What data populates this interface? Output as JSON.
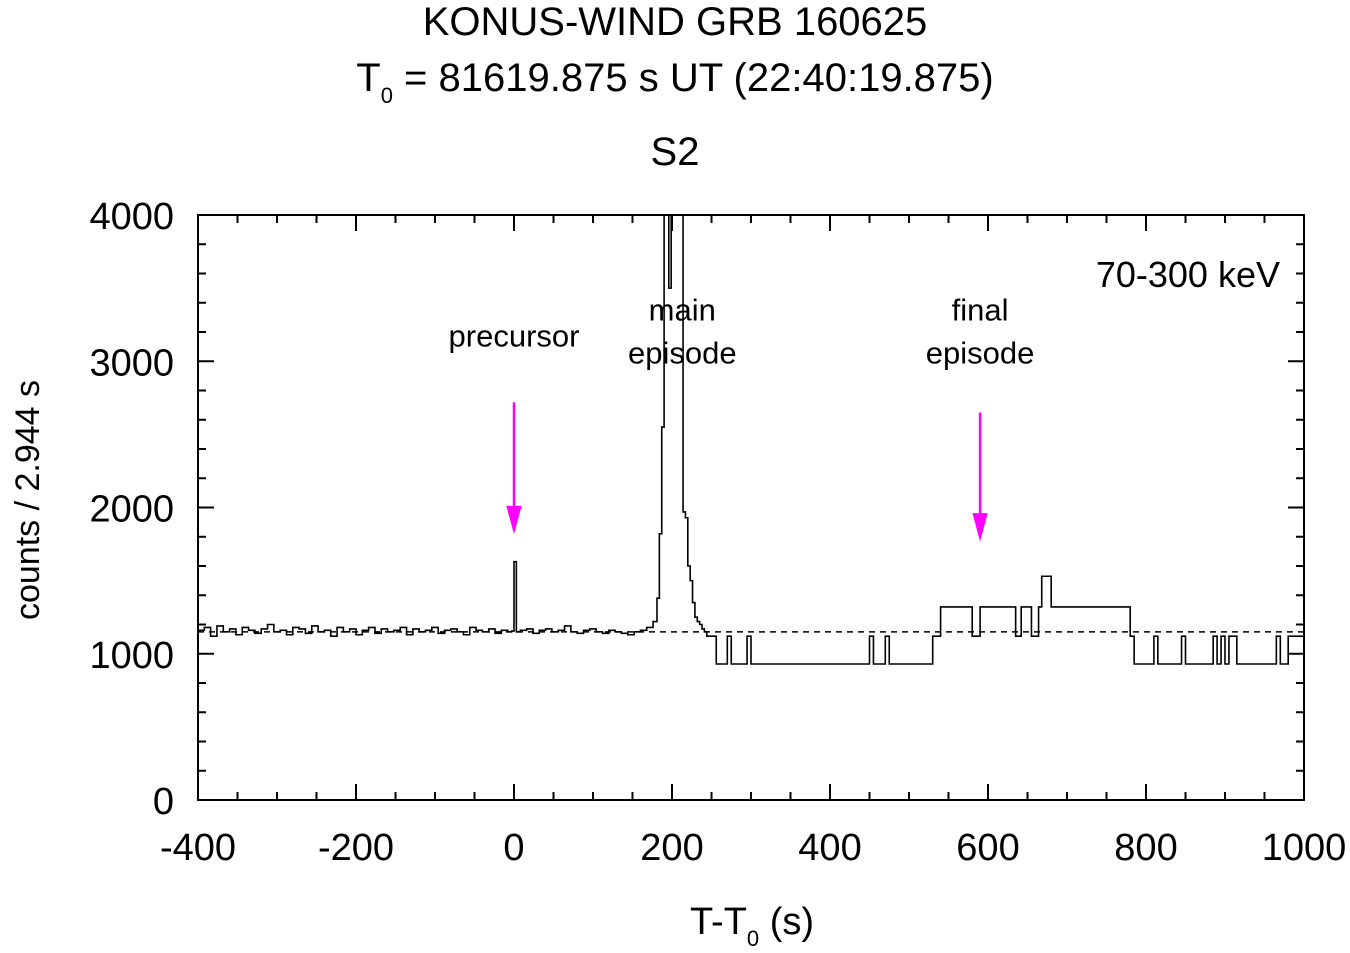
{
  "chart_data": {
    "type": "line",
    "title": "KONUS-WIND GRB 160625",
    "title_line2": {
      "prefix": "T",
      "sub": "0",
      "suffix": " = 81619.875 s UT (22:40:19.875)"
    },
    "panel_label": "S2",
    "energy_band": "70-300 keV",
    "xlabel": {
      "prefix": "T-T",
      "sub": "0",
      "suffix": " (s)"
    },
    "ylabel": "counts / 2.944 s",
    "xlim": [
      -400,
      1000
    ],
    "ylim": [
      0,
      4000
    ],
    "xticks": [
      -400,
      -200,
      0,
      200,
      400,
      600,
      800,
      1000
    ],
    "yticks": [
      0,
      1000,
      2000,
      3000,
      4000
    ],
    "grid": false,
    "background_level": 1150,
    "annotations": [
      {
        "lines": [
          "precursor"
        ],
        "x": 0,
        "y": 3100,
        "arrow_from": 2720,
        "arrow_to": 1830,
        "arrow_x": 0,
        "color": "#ff00ff"
      },
      {
        "lines": [
          "main",
          "episode"
        ],
        "x": 213,
        "y": 3280
      },
      {
        "lines": [
          "final",
          "episode"
        ],
        "x": 590,
        "y": 3280,
        "arrow_from": 2650,
        "arrow_to": 1780,
        "arrow_x": 590,
        "color": "#ff00ff"
      }
    ],
    "series": [
      {
        "style": "step",
        "x": [
          -400,
          -392,
          -384,
          -376,
          -368,
          -360,
          -352,
          -344,
          -336,
          -328,
          -320,
          -312,
          -304,
          -296,
          -288,
          -280,
          -272,
          -264,
          -256,
          -248,
          -240,
          -232,
          -224,
          -216,
          -208,
          -200,
          -192,
          -184,
          -176,
          -168,
          -160,
          -152,
          -144,
          -136,
          -128,
          -120,
          -112,
          -104,
          -96,
          -88,
          -80,
          -72,
          -64,
          -56,
          -48,
          -40,
          -32,
          -24,
          -16,
          -8,
          -3,
          0,
          3,
          8,
          16,
          24,
          32,
          40,
          48,
          56,
          64,
          72,
          80,
          88,
          96,
          104,
          112,
          120,
          128,
          136,
          144,
          152,
          160,
          168,
          176,
          181,
          184,
          187,
          190,
          193,
          196,
          199,
          202,
          205,
          208,
          211,
          214,
          217,
          220,
          223,
          226,
          229,
          232,
          235,
          238,
          241,
          244,
          248,
          256,
          270,
          275,
          295,
          300,
          450,
          455,
          470,
          475,
          530,
          540,
          580,
          590,
          635,
          642,
          655,
          664,
          668,
          680,
          780,
          785,
          810,
          815,
          845,
          850,
          885,
          890,
          895,
          900,
          905,
          915,
          965,
          970,
          980,
          1000
        ],
        "y": [
          1160,
          1180,
          1120,
          1190,
          1150,
          1170,
          1130,
          1180,
          1160,
          1140,
          1170,
          1200,
          1150,
          1160,
          1130,
          1180,
          1170,
          1140,
          1190,
          1150,
          1160,
          1120,
          1180,
          1150,
          1170,
          1130,
          1160,
          1180,
          1140,
          1170,
          1150,
          1160,
          1180,
          1130,
          1170,
          1150,
          1160,
          1180,
          1140,
          1160,
          1170,
          1150,
          1130,
          1180,
          1160,
          1150,
          1170,
          1140,
          1160,
          1150,
          1155,
          1630,
          1150,
          1160,
          1170,
          1140,
          1160,
          1170,
          1150,
          1160,
          1190,
          1150,
          1140,
          1160,
          1170,
          1150,
          1140,
          1160,
          1150,
          1140,
          1130,
          1150,
          1160,
          1180,
          1220,
          1380,
          1820,
          2550,
          4000,
          4000,
          3500,
          4000,
          4000,
          4000,
          4000,
          4000,
          1970,
          1930,
          1600,
          1500,
          1350,
          1250,
          1220,
          1200,
          1170,
          1150,
          1120,
          1120,
          930,
          1120,
          930,
          1120,
          930,
          1120,
          930,
          1120,
          930,
          1120,
          1320,
          1120,
          1320,
          1120,
          1320,
          1120,
          1320,
          1530,
          1320,
          1120,
          930,
          1120,
          930,
          1120,
          930,
          1120,
          930,
          1120,
          930,
          1120,
          930,
          1120,
          930,
          1120,
          1120
        ]
      }
    ]
  }
}
